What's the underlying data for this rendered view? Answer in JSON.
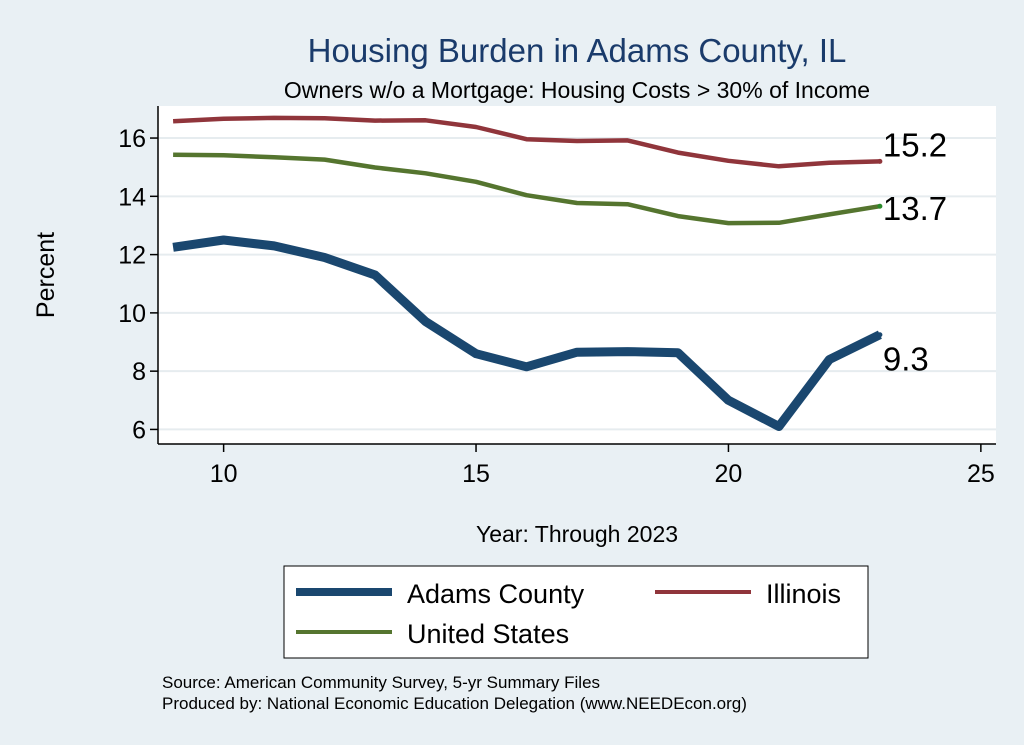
{
  "chart_data": {
    "type": "line",
    "title": "Housing Burden in Adams County, IL",
    "subtitle": "Owners w/o a Mortgage: Housing Costs > 30% of Income",
    "xlabel": "Year: Through 2023",
    "ylabel": "Percent",
    "xlim": [
      8.7,
      25.3
    ],
    "ylim": [
      5.5,
      17.1
    ],
    "x_ticks": [
      10,
      15,
      20,
      25
    ],
    "y_ticks": [
      6,
      8,
      10,
      12,
      14,
      16
    ],
    "x": [
      9,
      10,
      11,
      12,
      13,
      14,
      15,
      16,
      17,
      18,
      19,
      20,
      21,
      22,
      23
    ],
    "series": [
      {
        "name": "Adams County",
        "color": "#1a476f",
        "values": [
          12.25,
          12.5,
          12.3,
          11.9,
          11.3,
          9.7,
          8.6,
          8.15,
          8.65,
          8.67,
          8.63,
          7.0,
          6.1,
          8.4,
          9.25
        ],
        "end_label": "9.3"
      },
      {
        "name": "Illinois",
        "color": "#90353b",
        "values": [
          16.58,
          16.66,
          16.69,
          16.68,
          16.6,
          16.61,
          16.38,
          15.96,
          15.9,
          15.92,
          15.5,
          15.22,
          15.03,
          15.15,
          15.2
        ],
        "end_label": "15.2"
      },
      {
        "name": "United States",
        "color": "#55752f",
        "values": [
          15.43,
          15.41,
          15.34,
          15.26,
          14.99,
          14.79,
          14.5,
          14.04,
          13.77,
          13.73,
          13.32,
          13.08,
          13.09,
          13.38,
          13.66
        ],
        "end_label": "13.7"
      }
    ],
    "legend_position": "bottom",
    "grid": true
  },
  "notes": {
    "source": "Source: American Community Survey, 5-yr Summary Files",
    "produced": "Produced by: National Economic Education Delegation (www.NEEDEcon.org)"
  }
}
